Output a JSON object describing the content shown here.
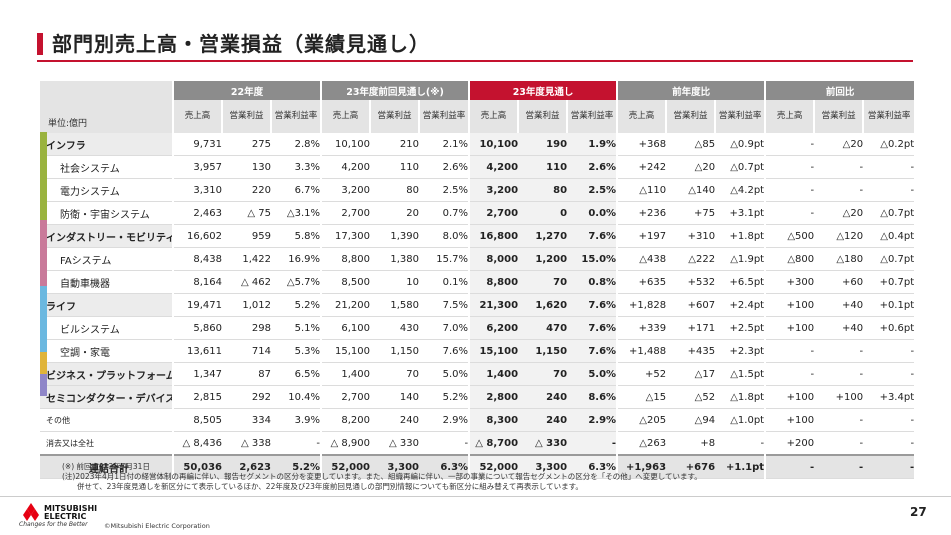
{
  "title": "部門別売上高・営業損益（業績見通し）",
  "colors": {
    "accent": "#c4122f",
    "infra": "#9ab33f",
    "mobility": "#c97a9a",
    "life": "#6bb8e0",
    "business": "#e0b43a",
    "semi": "#8f86c8"
  },
  "table": {
    "unit_label": "単位:億円",
    "group_headers": [
      "22年度",
      "23年度前回見通し(※)",
      "23年度見通し",
      "前年度比",
      "前回比"
    ],
    "sub_headers": [
      "売上高",
      "営業利益",
      "営業利益率",
      "売上高",
      "営業利益",
      "営業利益率",
      "売上高",
      "営業利益",
      "営業利益率",
      "売上高",
      "営業利益",
      "営業利益率",
      "売上高",
      "営業利益",
      "営業利益率"
    ],
    "rows": [
      {
        "label": "インフラ",
        "kind": "seg",
        "cells": [
          "9,731",
          "275",
          "2.8%",
          "10,100",
          "210",
          "2.1%",
          "10,100",
          "190",
          "1.9%",
          "+368",
          "△85",
          "△0.9pt",
          "-",
          "△20",
          "△0.2pt"
        ]
      },
      {
        "label": "社会システム",
        "kind": "sub2",
        "cells": [
          "3,957",
          "130",
          "3.3%",
          "4,200",
          "110",
          "2.6%",
          "4,200",
          "110",
          "2.6%",
          "+242",
          "△20",
          "△0.7pt",
          "-",
          "-",
          "-"
        ]
      },
      {
        "label": "電力システム",
        "kind": "sub2",
        "cells": [
          "3,310",
          "220",
          "6.7%",
          "3,200",
          "80",
          "2.5%",
          "3,200",
          "80",
          "2.5%",
          "△110",
          "△140",
          "△4.2pt",
          "-",
          "-",
          "-"
        ]
      },
      {
        "label": "防衛・宇宙システム",
        "kind": "sub2",
        "cells": [
          "2,463",
          "△ 75",
          "△3.1%",
          "2,700",
          "20",
          "0.7%",
          "2,700",
          "0",
          "0.0%",
          "+236",
          "+75",
          "+3.1pt",
          "-",
          "△20",
          "△0.7pt"
        ]
      },
      {
        "label": "インダストリー・モビリティ",
        "kind": "seg",
        "cells": [
          "16,602",
          "959",
          "5.8%",
          "17,300",
          "1,390",
          "8.0%",
          "16,800",
          "1,270",
          "7.6%",
          "+197",
          "+310",
          "+1.8pt",
          "△500",
          "△120",
          "△0.4pt"
        ]
      },
      {
        "label": "FAシステム",
        "kind": "sub2",
        "cells": [
          "8,438",
          "1,422",
          "16.9%",
          "8,800",
          "1,380",
          "15.7%",
          "8,000",
          "1,200",
          "15.0%",
          "△438",
          "△222",
          "△1.9pt",
          "△800",
          "△180",
          "△0.7pt"
        ]
      },
      {
        "label": "自動車機器",
        "kind": "sub2",
        "cells": [
          "8,164",
          "△ 462",
          "△5.7%",
          "8,500",
          "10",
          "0.1%",
          "8,800",
          "70",
          "0.8%",
          "+635",
          "+532",
          "+6.5pt",
          "+300",
          "+60",
          "+0.7pt"
        ]
      },
      {
        "label": "ライフ",
        "kind": "seg",
        "cells": [
          "19,471",
          "1,012",
          "5.2%",
          "21,200",
          "1,580",
          "7.5%",
          "21,300",
          "1,620",
          "7.6%",
          "+1,828",
          "+607",
          "+2.4pt",
          "+100",
          "+40",
          "+0.1pt"
        ]
      },
      {
        "label": "ビルシステム",
        "kind": "sub2",
        "cells": [
          "5,860",
          "298",
          "5.1%",
          "6,100",
          "430",
          "7.0%",
          "6,200",
          "470",
          "7.6%",
          "+339",
          "+171",
          "+2.5pt",
          "+100",
          "+40",
          "+0.6pt"
        ]
      },
      {
        "label": "空調・家電",
        "kind": "sub2",
        "cells": [
          "13,611",
          "714",
          "5.3%",
          "15,100",
          "1,150",
          "7.6%",
          "15,100",
          "1,150",
          "7.6%",
          "+1,488",
          "+435",
          "+2.3pt",
          "-",
          "-",
          "-"
        ]
      },
      {
        "label": "ビジネス・プラットフォーム",
        "kind": "seg",
        "cells": [
          "1,347",
          "87",
          "6.5%",
          "1,400",
          "70",
          "5.0%",
          "1,400",
          "70",
          "5.0%",
          "+52",
          "△17",
          "△1.5pt",
          "-",
          "-",
          "-"
        ]
      },
      {
        "label": "セミコンダクター・デバイス",
        "kind": "seg",
        "cells": [
          "2,815",
          "292",
          "10.4%",
          "2,700",
          "140",
          "5.2%",
          "2,800",
          "240",
          "8.6%",
          "△15",
          "△52",
          "△1.8pt",
          "+100",
          "+100",
          "+3.4pt"
        ]
      },
      {
        "label": "その他",
        "kind": "tiny",
        "cells": [
          "8,505",
          "334",
          "3.9%",
          "8,200",
          "240",
          "2.9%",
          "8,300",
          "240",
          "2.9%",
          "△205",
          "△94",
          "△1.0pt",
          "+100",
          "-",
          "-"
        ]
      },
      {
        "label": "消去又は全社",
        "kind": "tiny",
        "cells": [
          "△ 8,436",
          "△ 338",
          "-",
          "△ 8,900",
          "△ 330",
          "-",
          "△ 8,700",
          "△ 330",
          "-",
          "△263",
          "+8",
          "-",
          "+200",
          "-",
          "-"
        ]
      },
      {
        "label": "連結合計",
        "kind": "total",
        "cells": [
          "50,036",
          "2,623",
          "5.2%",
          "52,000",
          "3,300",
          "6.3%",
          "52,000",
          "3,300",
          "6.3%",
          "+1,963",
          "+676",
          "+1.1pt",
          "-",
          "-",
          "-"
        ]
      }
    ]
  },
  "notes": [
    "(※) 前回:2023年7月31日",
    "(注)2023年4月1日付の経営体制の再編に伴い、報告セグメントの区分を変更しています。また、組織再編に伴い、一部の事業について報告セグメントの区分を「その他」へ変更しています。",
    "　　併せて、23年度見通しを新区分にて表示しているほか、22年度及び23年度前回見通しの部門別情報についても新区分に組み替えて再表示しています。"
  ],
  "footer": {
    "logo_line1": "MITSUBISHI",
    "logo_line2": "ELECTRIC",
    "tagline": "Changes for the Better",
    "copyright": "©Mitsubishi Electric Corporation",
    "page_number": "27"
  }
}
